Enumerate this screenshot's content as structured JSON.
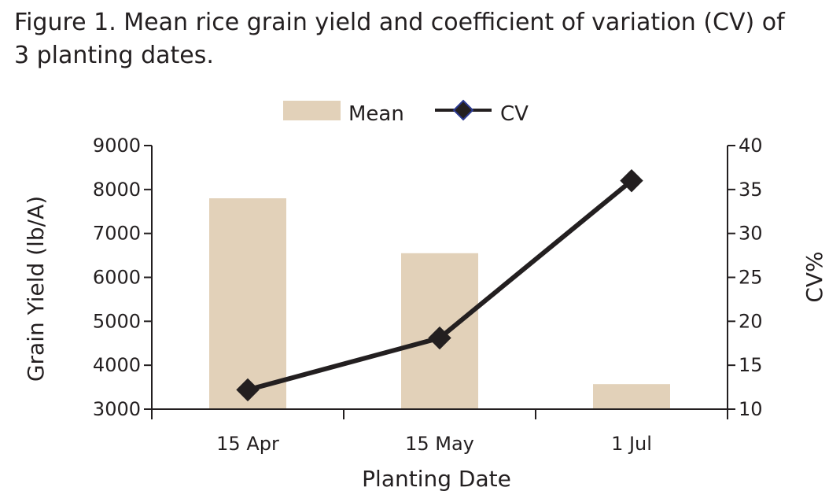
{
  "caption": {
    "line1": "Figure 1.  Mean rice grain yield and coefficient of variation (CV) of",
    "line2": "3 planting dates."
  },
  "chart_data": {
    "type": "bar",
    "categories": [
      "15 Apr",
      "15 May",
      "1 Jul"
    ],
    "series": [
      {
        "name": "Mean",
        "kind": "bar",
        "axis": "left",
        "values": [
          7800,
          6550,
          3570
        ],
        "color": "#e2d1b9"
      },
      {
        "name": "CV",
        "kind": "line",
        "axis": "right",
        "values": [
          12.2,
          18.1,
          36.0
        ],
        "color": "#231f20",
        "marker_edge": "#2b3990"
      }
    ],
    "xlabel": "Planting Date",
    "ylabel": "Grain Yield (lb/A)",
    "y2label": "CV%",
    "ylim": [
      3000,
      9000
    ],
    "yticks": [
      3000,
      4000,
      5000,
      6000,
      7000,
      8000,
      9000
    ],
    "y2lim": [
      10,
      40
    ],
    "y2ticks": [
      10,
      15,
      20,
      25,
      30,
      35,
      40
    ],
    "legend": {
      "placement": "top-center",
      "entries": [
        "Mean",
        "CV"
      ]
    },
    "grid": false
  }
}
